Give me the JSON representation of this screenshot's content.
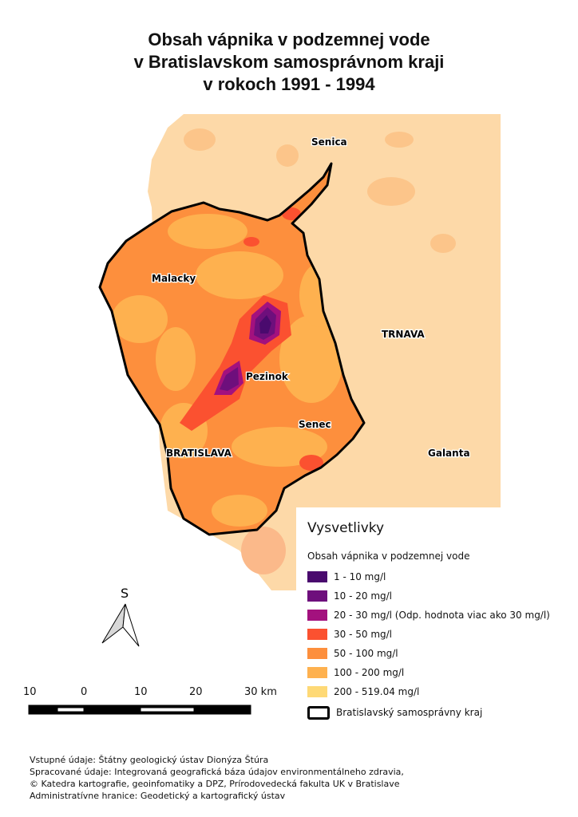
{
  "title": {
    "line1": "Obsah vápnika v podzemnej vode",
    "line2": "v Bratislavskom samosprávnom kraji",
    "line3": "v rokoch 1991 - 1994"
  },
  "places": {
    "senica": "Senica",
    "malacky": "Malacky",
    "trnava": "TRNAVA",
    "pezinok": "Pezinok",
    "senec": "Senec",
    "bratislava": "BRATISLAVA",
    "galanta": "Galanta"
  },
  "north_arrow": {
    "label": "S"
  },
  "scale_bar": {
    "labels": [
      "10",
      "0",
      "10",
      "20",
      "30 km"
    ]
  },
  "legend": {
    "title": "Vysvetlivky",
    "subtitle": "Obsah vápnika v podzemnej vode",
    "classes": [
      {
        "label": "1 - 10 mg/l",
        "color": "#4a0a6e"
      },
      {
        "label": "10 - 20 mg/l",
        "color": "#6e0f7c"
      },
      {
        "label": "20 - 30 mg/l (Odp. hodnota viac ako 30 mg/l)",
        "color": "#a3117e"
      },
      {
        "label": "30 - 50 mg/l",
        "color": "#fb5130"
      },
      {
        "label": "50 - 100 mg/l",
        "color": "#fd8f3d"
      },
      {
        "label": "100 - 200 mg/l",
        "color": "#feb14f"
      },
      {
        "label": "200 - 519.04 mg/l",
        "color": "#fed976"
      }
    ],
    "boundary": "Bratislavský samosprávny kraj"
  },
  "footer": {
    "line1": "Vstupné údaje: Štátny geologický ústav Dionýza Štúra",
    "line2": "Spracované údaje: Integrovaná geografická báza údajov environmentálneho zdravia,",
    "line3": "© Katedra kartografie, geoinfomatiky a DPZ, Prírodovedecká fakulta UK v Bratislave",
    "line4": "Administratívne hranice: Geodetický a kartografický ústav"
  }
}
